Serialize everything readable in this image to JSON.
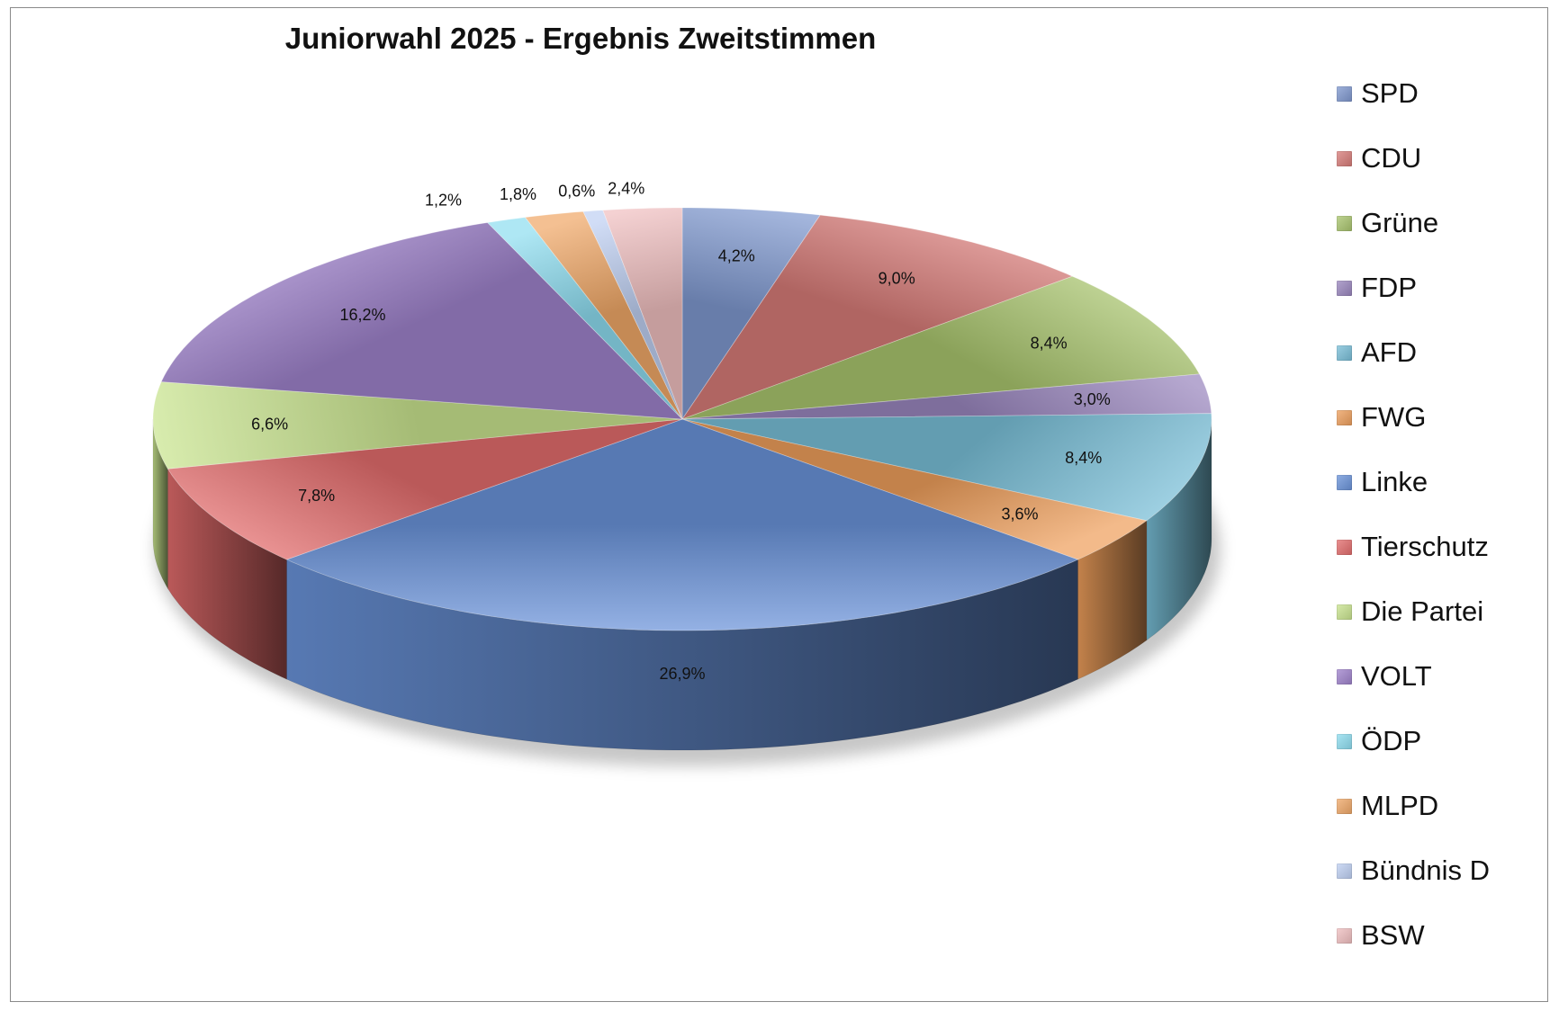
{
  "chart_data": {
    "type": "pie",
    "title": "Juniorwahl 2025 - Ergebnis Zweitstimmen",
    "legend_position": "right",
    "style": "3d-exploded",
    "series": [
      {
        "name": "SPD",
        "value": 4.2,
        "label": "4,2%",
        "color": "#7F98CF"
      },
      {
        "name": "CDU",
        "value": 9.0,
        "label": "9,0%",
        "color": "#D77B78"
      },
      {
        "name": "Grüne",
        "value": 8.4,
        "label": "8,4%",
        "color": "#A9C56E"
      },
      {
        "name": "FDP",
        "value": 3.0,
        "label": "3,0%",
        "color": "#9A86BE"
      },
      {
        "name": "AFD",
        "value": 8.4,
        "label": "8,4%",
        "color": "#79BFD8"
      },
      {
        "name": "FWG",
        "value": 3.6,
        "label": "3,6%",
        "color": "#EE9F5C"
      },
      {
        "name": "Linke",
        "value": 26.9,
        "label": "26,9%",
        "color": "#6A93DA"
      },
      {
        "name": "Tierschutz",
        "value": 7.8,
        "label": "7,8%",
        "color": "#E36C6C"
      },
      {
        "name": "Die Partei",
        "value": 6.6,
        "label": "6,6%",
        "color": "#C9E48F"
      },
      {
        "name": "VOLT",
        "value": 16.2,
        "label": "16,2%",
        "color": "#9F82CC"
      },
      {
        "name": "ÖDP",
        "value": 1.2,
        "label": "1,2%",
        "color": "#8EDDF0"
      },
      {
        "name": "MLPD",
        "value": 1.8,
        "label": "1,8%",
        "color": "#F0A868"
      },
      {
        "name": "Bündnis D",
        "value": 0.6,
        "label": "0,6%",
        "color": "#BFD0F3"
      },
      {
        "name": "BSW",
        "value": 2.4,
        "label": "2,4%",
        "color": "#F0BFC0"
      }
    ]
  }
}
